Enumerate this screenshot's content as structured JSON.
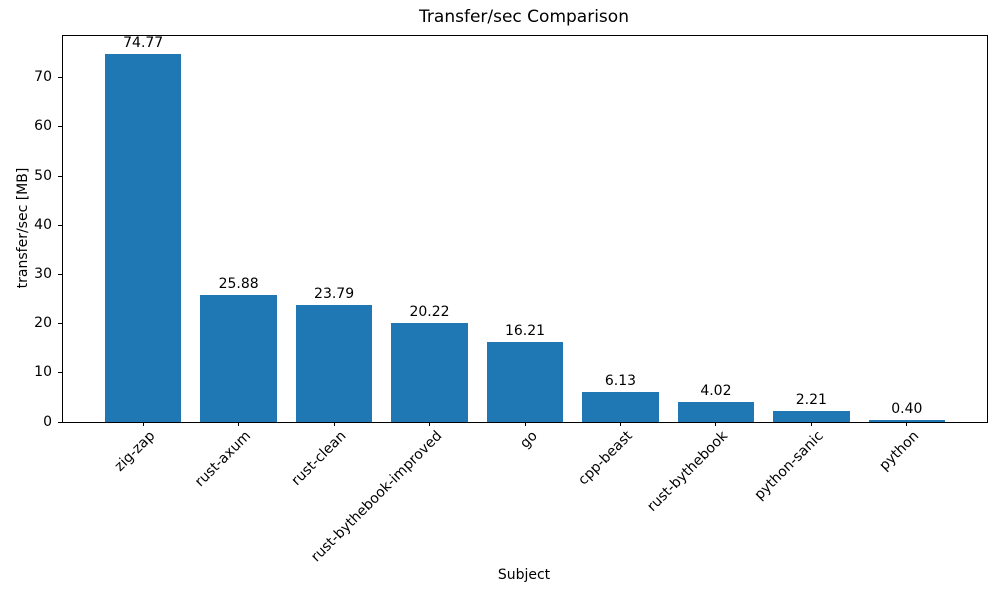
{
  "chart_data": {
    "type": "bar",
    "title": "Transfer/sec Comparison",
    "xlabel": "Subject",
    "ylabel": "transfer/sec [MB]",
    "categories": [
      "zig-zap",
      "rust-axum",
      "rust-clean",
      "rust-bythebook-improved",
      "go",
      "cpp-beast",
      "rust-bythebook",
      "python-sanic",
      "python"
    ],
    "values": [
      74.77,
      25.88,
      23.79,
      20.22,
      16.21,
      6.13,
      4.02,
      2.21,
      0.4
    ],
    "value_labels": [
      "74.77",
      "25.88",
      "23.79",
      "20.22",
      "16.21",
      "6.13",
      "4.02",
      "2.21",
      "0.40"
    ],
    "yticks": [
      0,
      10,
      20,
      30,
      40,
      50,
      60,
      70
    ],
    "ylim": [
      0,
      78.5
    ],
    "xlim": [
      -0.84,
      8.84
    ],
    "bar_width_units": 0.8,
    "bar_color": "#1f77b4",
    "axis_color": "#000000",
    "grid": false,
    "legend_position": "none",
    "xtick_rotation_deg": 45
  }
}
